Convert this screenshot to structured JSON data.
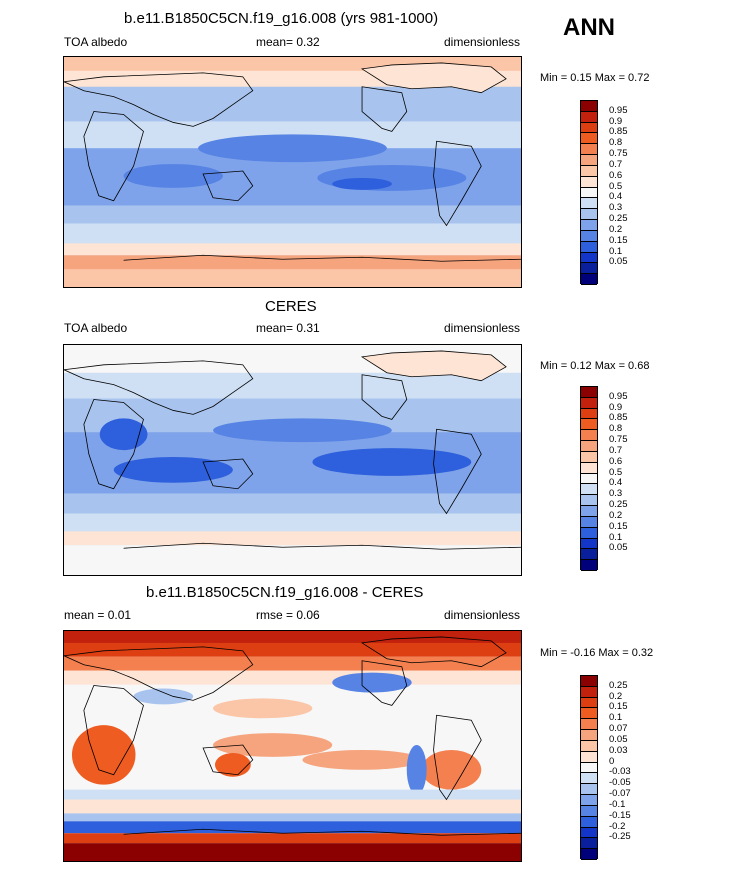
{
  "season": "ANN",
  "panels": [
    {
      "title": "b.e11.B1850C5CN.f19_g16.008 (yrs 981-1000)",
      "left_label": "TOA albedo",
      "mid_label": "mean=   0.32",
      "right_label": "dimensionless",
      "min_max": "Min =   0.15 Max =   0.72",
      "colorbar_labels": [
        "0.95",
        "0.9",
        "0.85",
        "0.8",
        "0.75",
        "0.7",
        "0.6",
        "0.5",
        "0.4",
        "0.3",
        "0.25",
        "0.2",
        "0.15",
        "0.1",
        "0.05"
      ],
      "colorbar_colors": [
        "#8b0000",
        "#c1210d",
        "#de3f12",
        "#ee5c22",
        "#f48050",
        "#f6a47e",
        "#fbc6a8",
        "#fde4d4",
        "#f7f7f7",
        "#cfe0f4",
        "#a8c4ee",
        "#7ea3ea",
        "#5683e4",
        "#2e5fdc",
        "#1336c8",
        "#0a1f9c",
        "#00007a"
      ]
    },
    {
      "title": "CERES",
      "left_label": "TOA albedo",
      "mid_label": "mean=   0.31",
      "right_label": "dimensionless",
      "min_max": "Min =   0.12 Max =   0.68",
      "colorbar_labels": [
        "0.95",
        "0.9",
        "0.85",
        "0.8",
        "0.75",
        "0.7",
        "0.6",
        "0.5",
        "0.4",
        "0.3",
        "0.25",
        "0.2",
        "0.15",
        "0.1",
        "0.05"
      ],
      "colorbar_colors": [
        "#8b0000",
        "#c1210d",
        "#de3f12",
        "#ee5c22",
        "#f48050",
        "#f6a47e",
        "#fbc6a8",
        "#fde4d4",
        "#f7f7f7",
        "#cfe0f4",
        "#a8c4ee",
        "#7ea3ea",
        "#5683e4",
        "#2e5fdc",
        "#1336c8",
        "#0a1f9c",
        "#00007a"
      ]
    },
    {
      "title": "b.e11.B1850C5CN.f19_g16.008 - CERES",
      "left_label": "mean =   0.01",
      "mid_label": "rmse =   0.06",
      "right_label": "dimensionless",
      "min_max": "Min =  -0.16 Max =   0.32",
      "colorbar_labels": [
        "0.25",
        "0.2",
        "0.15",
        "0.1",
        "0.07",
        "0.05",
        "0.03",
        "0",
        "-0.03",
        "-0.05",
        "-0.07",
        "-0.1",
        "-0.15",
        "-0.2",
        "-0.25"
      ],
      "colorbar_colors": [
        "#8b0000",
        "#c1210d",
        "#de3f12",
        "#ee5c22",
        "#f48050",
        "#f6a47e",
        "#fbc6a8",
        "#fde4d4",
        "#f7f7f7",
        "#cfe0f4",
        "#a8c4ee",
        "#7ea3ea",
        "#5683e4",
        "#2e5fdc",
        "#1336c8",
        "#0a1f9c",
        "#00007a"
      ]
    }
  ]
}
